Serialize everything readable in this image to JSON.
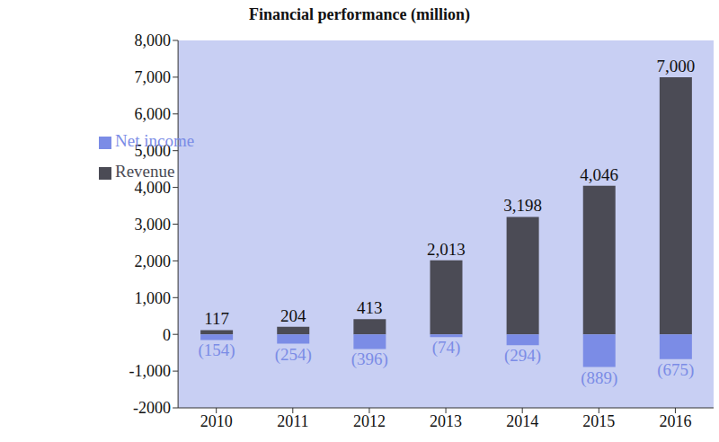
{
  "chart_data": {
    "type": "bar",
    "title": "Financial performance (million)",
    "categories": [
      "2010",
      "2011",
      "2012",
      "2013",
      "2014",
      "2015",
      "2016"
    ],
    "series": [
      {
        "name": "Revenue",
        "color": "#4b4b55",
        "values": [
          117,
          204,
          413,
          2013,
          3198,
          4046,
          7000
        ],
        "value_labels": [
          "117",
          "204",
          "413",
          "2,013",
          "3,198",
          "4,046",
          "7,000"
        ]
      },
      {
        "name": "Net income",
        "color": "#7b8ce6",
        "values": [
          -154,
          -254,
          -396,
          -74,
          -294,
          -889,
          -675
        ],
        "value_labels": [
          "(154)",
          "(254)",
          "(396)",
          "(74)",
          "(294)",
          "(889)",
          "(675)"
        ]
      }
    ],
    "ylim": [
      -2000,
      8000
    ],
    "yticks": [
      -2000,
      {
        "value": -1000,
        "label": "-1,000"
      },
      0,
      {
        "value": 1000,
        "label": "1,000"
      },
      {
        "value": 2000,
        "label": "2,000"
      },
      {
        "value": 3000,
        "label": "3,000"
      },
      {
        "value": 4000,
        "label": "4,000"
      },
      {
        "value": 5000,
        "label": "5,000"
      },
      {
        "value": 6000,
        "label": "6,000"
      },
      {
        "value": 7000,
        "label": "7,000"
      },
      {
        "value": 8000,
        "label": "8,000"
      }
    ],
    "stacked": true,
    "data_labels": true,
    "legend": "upper left",
    "grid": false
  }
}
